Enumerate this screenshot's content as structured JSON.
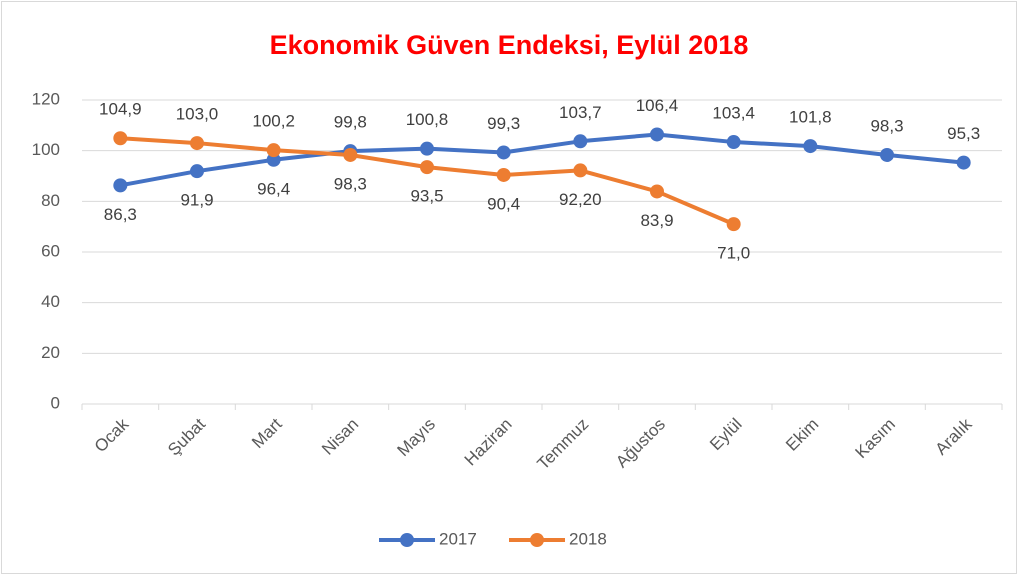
{
  "chart_data": {
    "type": "line",
    "title": "Ekonomik Güven Endeksi, Eylül 2018",
    "categories": [
      "Ocak",
      "Şubat",
      "Mart",
      "Nisan",
      "Mayıs",
      "Haziran",
      "Temmuz",
      "Ağustos",
      "Eylül",
      "Ekim",
      "Kasım",
      "Aralık"
    ],
    "series": [
      {
        "name": "2017",
        "color": "#4472c4",
        "values": [
          86.3,
          91.9,
          96.4,
          99.8,
          100.8,
          99.3,
          103.7,
          106.4,
          103.4,
          101.8,
          98.3,
          95.3
        ],
        "value_labels": [
          "86,3",
          "91,9",
          "96,4",
          "99,8",
          "100,8",
          "99,3",
          "103,7",
          "106,4",
          "103,4",
          "101,8",
          "98,3",
          "95,3"
        ]
      },
      {
        "name": "2018",
        "color": "#ed7d31",
        "values": [
          104.9,
          103.0,
          100.2,
          98.3,
          93.5,
          90.4,
          92.2,
          83.9,
          71.0,
          null,
          null,
          null
        ],
        "value_labels": [
          "104,9",
          "103,0",
          "100,2",
          "98,3",
          "93,5",
          "90,4",
          "92,20",
          "83,9",
          "71,0",
          null,
          null,
          null
        ]
      }
    ],
    "ylim": [
      0,
      120
    ],
    "yticks": [
      0,
      20,
      40,
      60,
      80,
      100,
      120
    ],
    "grid": true,
    "legend": "bottom"
  }
}
